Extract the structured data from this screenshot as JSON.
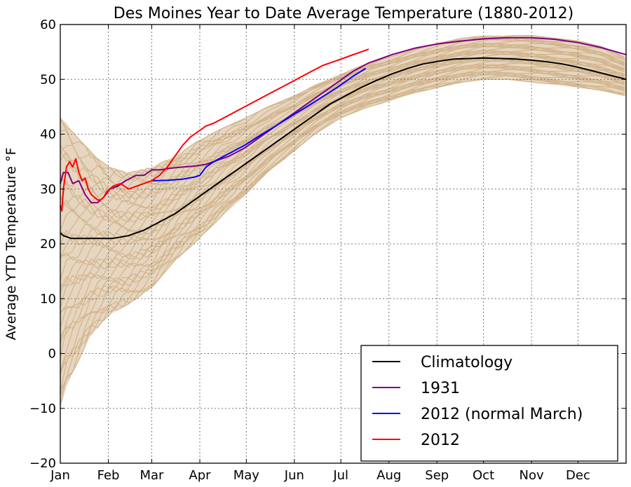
{
  "chart_data": {
    "type": "line",
    "title": "Des Moines Year to Date Average Temperature (1880-2012)",
    "xlabel": "",
    "ylabel": "Average YTD Temperature °F",
    "x_unit": "day of year",
    "xlim": [
      1,
      366
    ],
    "ylim": [
      -20,
      60
    ],
    "yticks": [
      -20,
      -10,
      0,
      10,
      20,
      30,
      40,
      50,
      60
    ],
    "month_ticks": [
      {
        "label": "Jan",
        "day": 1
      },
      {
        "label": "Feb",
        "day": 32
      },
      {
        "label": "Mar",
        "day": 60
      },
      {
        "label": "Apr",
        "day": 91
      },
      {
        "label": "May",
        "day": 121
      },
      {
        "label": "Jun",
        "day": 152
      },
      {
        "label": "Jul",
        "day": 182
      },
      {
        "label": "Aug",
        "day": 213
      },
      {
        "label": "Sep",
        "day": 244
      },
      {
        "label": "Oct",
        "day": 274
      },
      {
        "label": "Nov",
        "day": 305
      },
      {
        "label": "Dec",
        "day": 335
      }
    ],
    "grid": true,
    "legend_position": "bottom-right",
    "historical_color": "#d2b48c",
    "historical_band": {
      "x": [
        1,
        5,
        10,
        20,
        32,
        45,
        60,
        75,
        91,
        105,
        121,
        135,
        152,
        165,
        182,
        200,
        213,
        230,
        244,
        260,
        274,
        290,
        305,
        320,
        335,
        350,
        366
      ],
      "upper": [
        43,
        42,
        40,
        37,
        34,
        33,
        34,
        36,
        39,
        41,
        43,
        45,
        47,
        49,
        51,
        53,
        54,
        55.5,
        56.5,
        57.5,
        58,
        58,
        58,
        57.5,
        57,
        56,
        54
      ],
      "lower": [
        -10,
        -6,
        -3,
        3,
        7,
        9,
        12,
        17,
        21,
        25,
        29,
        33,
        37,
        40,
        43,
        45,
        46,
        47.5,
        48.5,
        49.5,
        50,
        50,
        49.5,
        49,
        48.5,
        48,
        47
      ]
    },
    "series": [
      {
        "name": "Climatology",
        "color": "#000000",
        "x": [
          1,
          3,
          8,
          15,
          25,
          35,
          45,
          55,
          65,
          75,
          85,
          95,
          105,
          115,
          125,
          135,
          145,
          155,
          165,
          175,
          185,
          195,
          205,
          215,
          225,
          235,
          245,
          255,
          265,
          275,
          285,
          295,
          305,
          315,
          325,
          335,
          345,
          355,
          366
        ],
        "y": [
          22,
          21.5,
          21,
          21,
          21,
          21,
          21.5,
          22.5,
          24,
          25.5,
          27.5,
          29.5,
          31.5,
          33.5,
          35.5,
          37.5,
          39.5,
          41.5,
          43.5,
          45.5,
          47,
          48.5,
          49.8,
          51,
          52,
          52.8,
          53.3,
          53.7,
          53.8,
          53.9,
          53.8,
          53.7,
          53.5,
          53.2,
          52.8,
          52.2,
          51.5,
          50.8,
          50
        ]
      },
      {
        "name": "1931",
        "color": "#800080",
        "x": [
          1,
          3,
          6,
          9,
          13,
          17,
          21,
          25,
          29,
          33,
          38,
          43,
          50,
          55,
          60,
          66,
          72,
          80,
          88,
          95,
          100,
          110,
          120,
          130,
          140,
          150,
          160,
          170,
          180,
          190,
          200,
          215,
          230,
          245,
          260,
          275,
          290,
          305,
          320,
          335,
          350,
          366
        ],
        "y": [
          31,
          33,
          33,
          31,
          31.5,
          29,
          27.5,
          27.5,
          28.5,
          30,
          30.5,
          31.5,
          32.5,
          32.5,
          33.5,
          33.5,
          33.8,
          34,
          34.2,
          34.5,
          35,
          36,
          37.5,
          39.5,
          41.5,
          43.5,
          45.5,
          47.5,
          49.5,
          51.5,
          53,
          54.5,
          55.7,
          56.5,
          57,
          57.4,
          57.6,
          57.6,
          57.3,
          56.7,
          55.8,
          54.5
        ]
      },
      {
        "name": "2012 (normal March)",
        "color": "#0000ff",
        "x": [
          60,
          70,
          80,
          88,
          91,
          95,
          100,
          110,
          120,
          130,
          140,
          150,
          160,
          170,
          180,
          190,
          198
        ],
        "y": [
          31.5,
          31.6,
          31.8,
          32.2,
          32.5,
          34,
          35,
          36.5,
          38,
          39.8,
          41.5,
          43.3,
          45,
          46.8,
          48.6,
          50.6,
          52
        ]
      },
      {
        "name": "2012",
        "color": "#ff0000",
        "x": [
          1,
          2,
          3,
          5,
          7,
          9,
          11,
          13,
          15,
          17,
          19,
          21,
          23,
          25,
          27,
          29,
          31,
          35,
          40,
          45,
          50,
          55,
          60,
          65,
          70,
          75,
          80,
          85,
          90,
          95,
          100,
          110,
          120,
          130,
          140,
          150,
          160,
          170,
          180,
          190,
          195,
          200
        ],
        "y": [
          27,
          26,
          30,
          34,
          35,
          34,
          35.5,
          33,
          31.5,
          32,
          30,
          29,
          28.5,
          28,
          28,
          28.5,
          29.5,
          30.5,
          31,
          30,
          30.5,
          31,
          31.5,
          32.5,
          34,
          36,
          38,
          39.5,
          40.5,
          41.5,
          42,
          43.5,
          45,
          46.5,
          48,
          49.5,
          51,
          52.5,
          53.5,
          54.5,
          55,
          55.5
        ]
      }
    ],
    "legend": [
      "Climatology",
      "1931",
      "2012 (normal March)",
      "2012"
    ]
  }
}
